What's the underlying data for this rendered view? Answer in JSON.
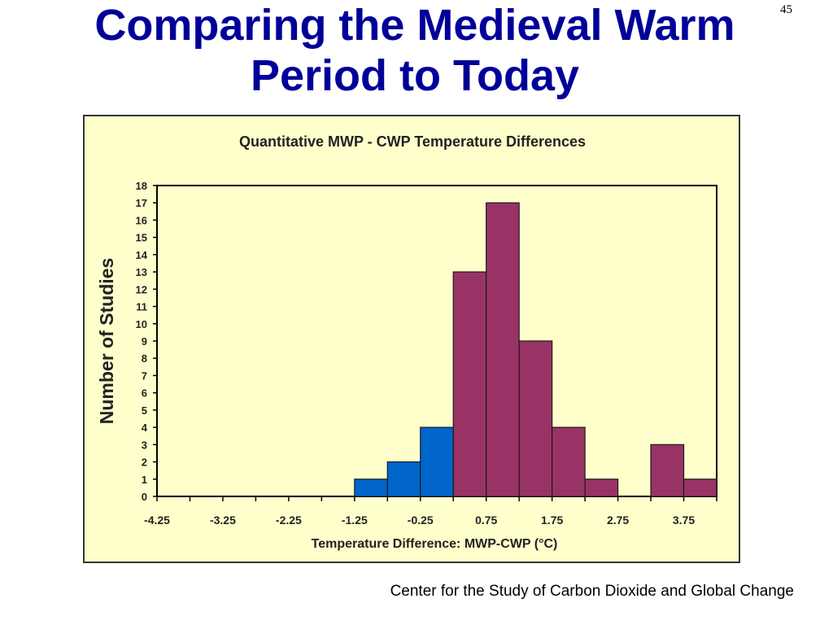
{
  "slide": {
    "title_line1": "Comparing the Medieval Warm",
    "title_line2": "Period to Today",
    "number": "45",
    "source": "Center for the Study of Carbon Dioxide and Global Change"
  },
  "colors": {
    "title": "#000099",
    "panel_background": "#ffffcc",
    "negative_bar": "#0066cc",
    "positive_bar": "#993366"
  },
  "chart_data": {
    "type": "bar",
    "title": "Quantitative MWP - CWP Temperature Differences",
    "xlabel": "Temperature Difference: MWP-CWP (°C)",
    "ylabel": "Number of Studies",
    "ylim": [
      0,
      18
    ],
    "xlim": [
      -4.25,
      4.25
    ],
    "bin_width": 0.5,
    "x_ticks": [
      "-4.25",
      "-3.25",
      "-2.25",
      "-1.25",
      "-0.25",
      "0.75",
      "1.75",
      "2.75",
      "3.75"
    ],
    "y_ticks": [
      "0",
      "1",
      "2",
      "3",
      "4",
      "5",
      "6",
      "7",
      "8",
      "9",
      "10",
      "11",
      "12",
      "13",
      "14",
      "15",
      "16",
      "17",
      "18"
    ],
    "grid": false,
    "bins": [
      {
        "x_start": -1.25,
        "value": 1,
        "sign": "negative"
      },
      {
        "x_start": -0.75,
        "value": 2,
        "sign": "negative"
      },
      {
        "x_start": -0.25,
        "value": 4,
        "sign": "negative"
      },
      {
        "x_start": 0.25,
        "value": 13,
        "sign": "positive"
      },
      {
        "x_start": 0.75,
        "value": 17,
        "sign": "positive"
      },
      {
        "x_start": 1.25,
        "value": 9,
        "sign": "positive"
      },
      {
        "x_start": 1.75,
        "value": 4,
        "sign": "positive"
      },
      {
        "x_start": 2.25,
        "value": 1,
        "sign": "positive"
      },
      {
        "x_start": 3.25,
        "value": 3,
        "sign": "positive"
      },
      {
        "x_start": 3.75,
        "value": 1,
        "sign": "positive"
      }
    ]
  }
}
